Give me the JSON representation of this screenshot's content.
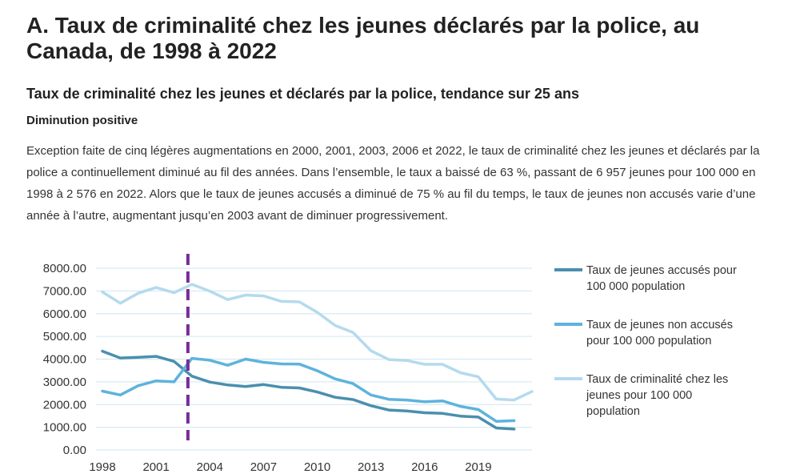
{
  "page": {
    "title": "A. Taux de criminalité chez les jeunes déclarés par la police, au Canada, de 1998 à 2022",
    "subtitle": "Taux de criminalité chez les jeunes et déclarés par la police, tendance sur 25 ans",
    "kicker": "Diminution positive",
    "paragraph": "Exception faite de cinq légères augmentations en 2000, 2001, 2003, 2006 et 2022, le taux de criminalité chez les jeunes et déclarés par la police a continuellement diminué au fil des années. Dans l’ensemble, le taux a baissé de 63 %, passant de 6 957 jeunes pour 100 000 en 1998 à 2 576 en 2022. Alors que le taux de jeunes accusés a diminué de 75 % au fil du temps, le taux de jeunes non accusés varie d’une année à l’autre, augmentant jusqu’en 2003 avant de diminuer progressivement."
  },
  "colors": {
    "accused": "#4a8fae",
    "not_accused": "#5eb3dc",
    "total": "#b4daee",
    "marker": "#7a2b9a",
    "grid": "#cfe6f2"
  },
  "chart_data": {
    "type": "line",
    "title": "",
    "xlabel": "",
    "ylabel": "",
    "ylim": [
      0,
      8000
    ],
    "y_ticks": [
      "8000.00",
      "7000.00",
      "6000.00",
      "5000.00",
      "4000.00",
      "3000.00",
      "2000.00",
      "1000.00",
      "0.00"
    ],
    "y_tick_values": [
      8000,
      7000,
      6000,
      5000,
      4000,
      3000,
      2000,
      1000,
      0
    ],
    "x_tick_labels": [
      "1998",
      "2001",
      "2004",
      "2007",
      "2010",
      "2013",
      "2016",
      "2019"
    ],
    "x_tick_values": [
      1998,
      2001,
      2004,
      2007,
      2010,
      2013,
      2016,
      2019
    ],
    "x_range": [
      1998,
      2022
    ],
    "x": [
      1998,
      1999,
      2000,
      2001,
      2002,
      2003,
      2004,
      2005,
      2006,
      2007,
      2008,
      2009,
      2010,
      2011,
      2012,
      2013,
      2014,
      2015,
      2016,
      2017,
      2018,
      2019,
      2020,
      2021,
      2022
    ],
    "vertical_marker": {
      "x": 2003,
      "style": "dashed"
    },
    "series": [
      {
        "key": "accused",
        "name": "Taux de jeunes accusés pour 100 000 population",
        "legend_lines": [
          "Taux de jeunes accusés pour",
          "100 000 population"
        ],
        "values": [
          4350,
          4050,
          4080,
          4120,
          3900,
          3250,
          2990,
          2860,
          2790,
          2880,
          2760,
          2730,
          2550,
          2320,
          2220,
          1950,
          1760,
          1720,
          1640,
          1610,
          1490,
          1450,
          970,
          920,
          null
        ]
      },
      {
        "key": "not_accused",
        "name": "Taux de jeunes non accusés pour 100 000 population",
        "legend_lines": [
          "Taux de jeunes non accusés",
          "pour 100 000 population"
        ],
        "values": [
          2590,
          2420,
          2830,
          3040,
          3000,
          4030,
          3950,
          3730,
          4000,
          3860,
          3790,
          3780,
          3490,
          3130,
          2920,
          2420,
          2230,
          2200,
          2120,
          2160,
          1920,
          1780,
          1260,
          1290,
          null
        ]
      },
      {
        "key": "total",
        "name": "Taux de criminalité chez les jeunes pour 100 000 population",
        "legend_lines": [
          "Taux de criminalité chez les",
          "jeunes pour 100 000",
          "population"
        ],
        "values": [
          6957,
          6460,
          6900,
          7150,
          6920,
          7290,
          6990,
          6620,
          6820,
          6780,
          6540,
          6520,
          6060,
          5480,
          5170,
          4370,
          3980,
          3940,
          3770,
          3770,
          3400,
          3220,
          2240,
          2200,
          2576
        ]
      }
    ]
  }
}
